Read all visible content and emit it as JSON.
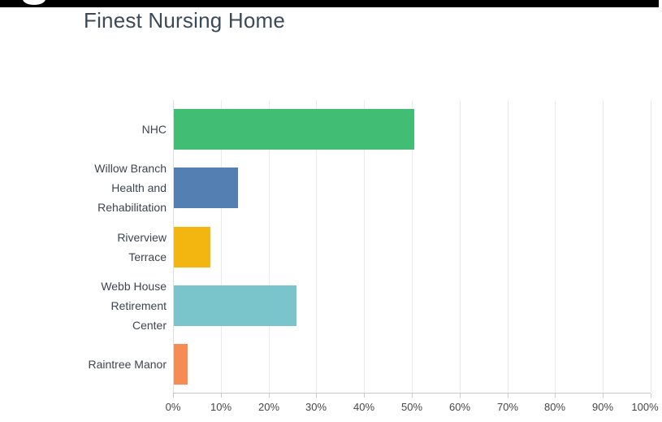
{
  "page": {
    "background": "#ffffff",
    "top_bar_color": "#000000",
    "cropped_icon": "partial-white-circle-icon"
  },
  "chart_data": {
    "type": "bar",
    "orientation": "horizontal",
    "title": "Finest Nursing Home",
    "title_color": "#3b4a59",
    "categories": [
      "NHC",
      "Willow Branch Health and Rehabilitation",
      "Riverview Terrace",
      "Webb House Retirement Center",
      "Raintree Manor"
    ],
    "category_lines": [
      [
        "NHC"
      ],
      [
        "Willow Branch",
        "Health and",
        "Rehabilitation"
      ],
      [
        "Riverview",
        "Terrace"
      ],
      [
        "Webb House",
        "Retirement",
        "Center"
      ],
      [
        "Raintree Manor"
      ]
    ],
    "values": [
      50.4,
      13.4,
      7.7,
      25.7,
      2.9
    ],
    "unit": "%",
    "bar_colors": [
      "#41bd74",
      "#537fb2",
      "#f3b50f",
      "#7ac5cc",
      "#f68b53"
    ],
    "xlim": [
      0,
      100
    ],
    "x_ticks": [
      "0%",
      "10%",
      "20%",
      "30%",
      "40%",
      "50%",
      "60%",
      "70%",
      "80%",
      "90%",
      "100%"
    ],
    "grid": true,
    "gridline_color": "#ebebeb",
    "axis_color": "#c9c9c9",
    "legend": "none"
  }
}
